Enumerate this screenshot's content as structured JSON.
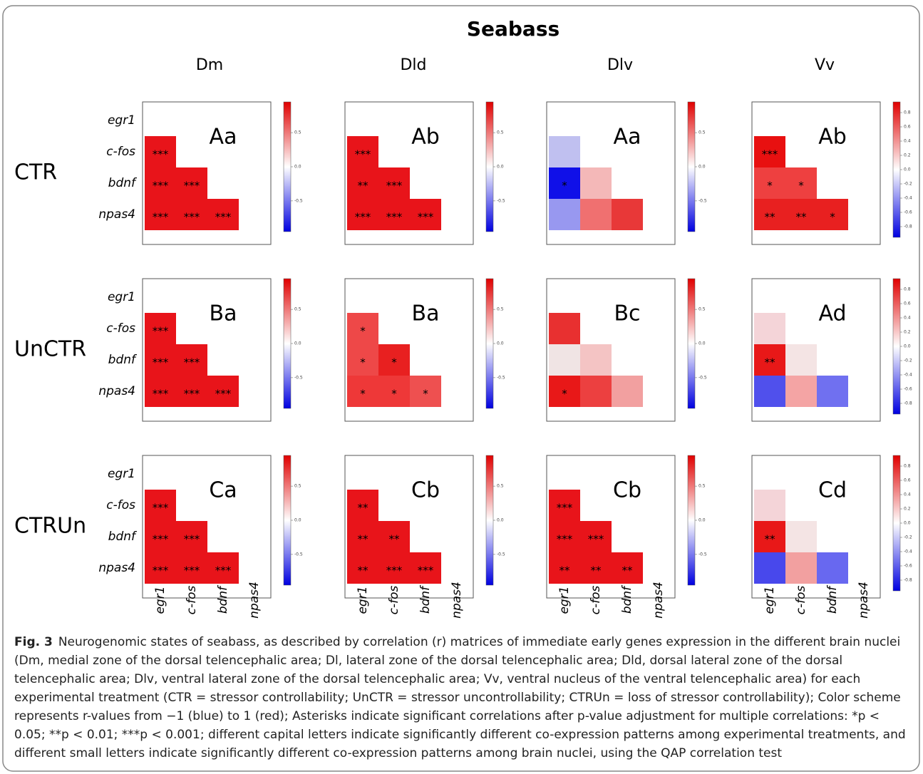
{
  "title": "Seabass",
  "columns": [
    "Dm",
    "Dld",
    "Dlv",
    "Vv"
  ],
  "rows": [
    "CTR",
    "UnCTR",
    "CTRUn"
  ],
  "genes": [
    "egr1",
    "c-fos",
    "bdnf",
    "npas4"
  ],
  "colorbar_lim": [
    -0.95,
    0.95
  ],
  "colorbar_ticks": {
    "standard": [
      0.5,
      {
        "value": 0,
        "label": "0.0"
      },
      -0.5
    ],
    "vv": [
      0.8,
      0.6,
      0.4,
      0.2,
      {
        "value": 0,
        "label": "0.0"
      },
      -0.2,
      -0.4,
      -0.6,
      -0.8
    ]
  },
  "panels": [
    [
      {
        "letter": "Aa",
        "cells": [
          {
            "color": "#e8141a",
            "stars": "***"
          },
          {
            "color": "#e8141a",
            "stars": "***"
          },
          {
            "color": "#e8141a",
            "stars": "***"
          },
          {
            "color": "#e8141a",
            "stars": "***"
          },
          {
            "color": "#e8141a",
            "stars": "***"
          },
          {
            "color": "#e8141a",
            "stars": "***"
          }
        ]
      },
      {
        "letter": "Ab",
        "cells": [
          {
            "color": "#e8141a",
            "stars": "***"
          },
          {
            "color": "#e8141a",
            "stars": "**"
          },
          {
            "color": "#e8141a",
            "stars": "***"
          },
          {
            "color": "#e8141a",
            "stars": "***"
          },
          {
            "color": "#e8141a",
            "stars": "***"
          },
          {
            "color": "#e8141a",
            "stars": "***"
          }
        ]
      },
      {
        "letter": "Aa",
        "cells": [
          {
            "color": "#c0c0f0"
          },
          {
            "color": "#1010e8",
            "stars": "*"
          },
          {
            "color": "#f4b8b8"
          },
          {
            "color": "#9898f0"
          },
          {
            "color": "#f07070"
          },
          {
            "color": "#e83838"
          }
        ]
      },
      {
        "letter": "Ab",
        "cells": [
          {
            "color": "#e81010",
            "stars": "***"
          },
          {
            "color": "#ee4040",
            "stars": "*"
          },
          {
            "color": "#ee4040",
            "stars": "*"
          },
          {
            "color": "#e82020",
            "stars": "**"
          },
          {
            "color": "#e82020",
            "stars": "**"
          },
          {
            "color": "#e82020",
            "stars": "*"
          }
        ]
      }
    ],
    [
      {
        "letter": "Ba",
        "cells": [
          {
            "color": "#e8141a",
            "stars": "***"
          },
          {
            "color": "#e8141a",
            "stars": "***"
          },
          {
            "color": "#e8141a",
            "stars": "***"
          },
          {
            "color": "#e8141a",
            "stars": "***"
          },
          {
            "color": "#e8141a",
            "stars": "***"
          },
          {
            "color": "#e8141a",
            "stars": "***"
          }
        ]
      },
      {
        "letter": "Ba",
        "cells": [
          {
            "color": "#ee4848",
            "stars": "*"
          },
          {
            "color": "#ee4848",
            "stars": "*"
          },
          {
            "color": "#e82020",
            "stars": "*"
          },
          {
            "color": "#ee3838",
            "stars": "*"
          },
          {
            "color": "#ee3838",
            "stars": "*"
          },
          {
            "color": "#ee5050",
            "stars": "*"
          }
        ]
      },
      {
        "letter": "Bc",
        "cells": [
          {
            "color": "#e83030"
          },
          {
            "color": "#f0e4e4"
          },
          {
            "color": "#f4c4c4"
          },
          {
            "color": "#e81818",
            "stars": "*"
          },
          {
            "color": "#ec4040"
          },
          {
            "color": "#f2a0a0"
          }
        ]
      },
      {
        "letter": "Ad",
        "cells": [
          {
            "color": "#f4d4d8"
          },
          {
            "color": "#e81818",
            "stars": "**"
          },
          {
            "color": "#f4e4e4"
          },
          {
            "color": "#5050ec"
          },
          {
            "color": "#f4a4a4"
          },
          {
            "color": "#7070f0"
          }
        ]
      }
    ],
    [
      {
        "letter": "Ca",
        "cells": [
          {
            "color": "#e8141a",
            "stars": "***"
          },
          {
            "color": "#e8141a",
            "stars": "***"
          },
          {
            "color": "#e8141a",
            "stars": "***"
          },
          {
            "color": "#e8141a",
            "stars": "***"
          },
          {
            "color": "#e8141a",
            "stars": "***"
          },
          {
            "color": "#e8141a",
            "stars": "***"
          }
        ]
      },
      {
        "letter": "Cb",
        "cells": [
          {
            "color": "#e8141a",
            "stars": "**"
          },
          {
            "color": "#e8141a",
            "stars": "**"
          },
          {
            "color": "#e8141a",
            "stars": "**"
          },
          {
            "color": "#e8141a",
            "stars": "**"
          },
          {
            "color": "#e8141a",
            "stars": "***"
          },
          {
            "color": "#e8141a",
            "stars": "***"
          }
        ]
      },
      {
        "letter": "Cb",
        "cells": [
          {
            "color": "#e8141a",
            "stars": "***"
          },
          {
            "color": "#e8141a",
            "stars": "***"
          },
          {
            "color": "#e8141a",
            "stars": "***"
          },
          {
            "color": "#e8141a",
            "stars": "**"
          },
          {
            "color": "#e8141a",
            "stars": "**"
          },
          {
            "color": "#e8141a",
            "stars": "**"
          }
        ]
      },
      {
        "letter": "Cd",
        "cells": [
          {
            "color": "#f4d4d8"
          },
          {
            "color": "#e81818",
            "stars": "**"
          },
          {
            "color": "#f4e4e4"
          },
          {
            "color": "#4848ec"
          },
          {
            "color": "#f2a0a0"
          },
          {
            "color": "#6868f0"
          }
        ]
      }
    ]
  ],
  "caption": {
    "label": "Fig. 3",
    "text": "Neurogenomic states of seabass, as described by correlation (r) matrices of immediate early genes expression in the different brain nuclei (Dm, medial zone of the dorsal telencephalic area; Dl, lateral zone of the dorsal telencephalic area; Dld, dorsal lateral zone of the dorsal telencephalic area; Dlv, ventral lateral zone of the dorsal telencephalic area; Vv, ventral nucleus of the ventral telencephalic area) for each experimental treatment (CTR = stressor controllability; UnCTR = stressor uncontrollability; CTRUn = loss of stressor controllability); Color scheme represents r-values from −1 (blue) to 1 (red); Asterisks indicate significant correlations after p-value adjustment for multiple correlations: *p < 0.05; **p < 0.01; ***p < 0.001; different capital letters indicate significantly different co-expression patterns among experimental treatments, and different small letters indicate significantly different co-expression patterns among brain nuclei, using the QAP correlation test"
  }
}
